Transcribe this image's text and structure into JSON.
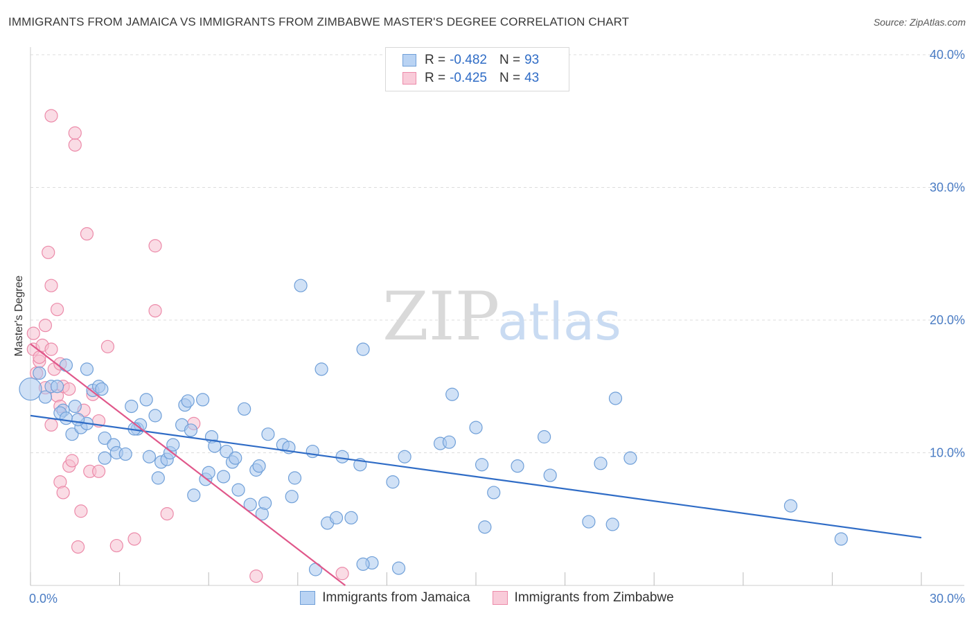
{
  "title": "IMMIGRANTS FROM JAMAICA VS IMMIGRANTS FROM ZIMBABWE MASTER'S DEGREE CORRELATION CHART",
  "source": "Source: ZipAtlas.com",
  "watermark": {
    "zip": "ZIP",
    "atlas": "atlas"
  },
  "legend": {
    "rows": [
      {
        "r_label": "R =",
        "r_value": "-0.482",
        "n_label": "N =",
        "n_value": "93"
      },
      {
        "r_label": "R =",
        "r_value": "-0.425",
        "n_label": "N =",
        "n_value": "43"
      }
    ]
  },
  "colors": {
    "jamaica_fill": "#a9c8ef",
    "jamaica_stroke": "#6f9fd8",
    "jamaica_line": "#2f6cc6",
    "zimbabwe_fill": "#f6bfd0",
    "zimbabwe_stroke": "#ec8aa9",
    "zimbabwe_line": "#e0578a",
    "grid": "#dcdcdc",
    "axis_label": "#4a7cc4"
  },
  "chart_data": {
    "type": "scatter",
    "title": "IMMIGRANTS FROM JAMAICA VS IMMIGRANTS FROM ZIMBABWE MASTER'S DEGREE CORRELATION CHART",
    "xlabel": "",
    "ylabel": "Master's Degree",
    "xlim": [
      0,
      30
    ],
    "ylim": [
      0,
      40
    ],
    "x_tick_labels": [
      {
        "value": 0,
        "label": "0.0%"
      },
      {
        "value": 30,
        "label": "30.0%"
      }
    ],
    "y_tick_labels": [
      {
        "value": 10,
        "label": "10.0%"
      },
      {
        "value": 20,
        "label": "20.0%"
      },
      {
        "value": 30,
        "label": "30.0%"
      },
      {
        "value": 40,
        "label": "40.0%"
      }
    ],
    "series": [
      {
        "name": "Immigrants from Jamaica",
        "r": -0.482,
        "n": 93,
        "trend": {
          "x": [
            0,
            30
          ],
          "y": [
            12.8,
            3.6
          ]
        },
        "points": [
          [
            0.0,
            14.8
          ],
          [
            0.3,
            16.0
          ],
          [
            0.5,
            14.2
          ],
          [
            0.7,
            15.0
          ],
          [
            0.9,
            15.0
          ],
          [
            1.1,
            13.2
          ],
          [
            1.0,
            13.0
          ],
          [
            1.2,
            12.6
          ],
          [
            1.2,
            16.6
          ],
          [
            1.4,
            11.4
          ],
          [
            1.5,
            13.5
          ],
          [
            1.7,
            11.9
          ],
          [
            1.9,
            12.2
          ],
          [
            1.9,
            16.3
          ],
          [
            2.1,
            14.7
          ],
          [
            2.3,
            15.0
          ],
          [
            2.5,
            11.1
          ],
          [
            2.5,
            9.6
          ],
          [
            2.8,
            10.6
          ],
          [
            2.9,
            10.0
          ],
          [
            3.2,
            9.9
          ],
          [
            3.4,
            13.5
          ],
          [
            3.6,
            11.8
          ],
          [
            3.7,
            12.1
          ],
          [
            3.9,
            14.0
          ],
          [
            4.0,
            9.7
          ],
          [
            4.2,
            12.8
          ],
          [
            4.3,
            8.1
          ],
          [
            4.4,
            9.3
          ],
          [
            4.6,
            9.5
          ],
          [
            4.7,
            10.0
          ],
          [
            4.8,
            10.6
          ],
          [
            5.1,
            12.1
          ],
          [
            5.2,
            13.6
          ],
          [
            5.3,
            13.9
          ],
          [
            5.4,
            11.7
          ],
          [
            5.5,
            6.8
          ],
          [
            5.8,
            14.0
          ],
          [
            5.9,
            8.0
          ],
          [
            6.0,
            8.5
          ],
          [
            6.1,
            11.2
          ],
          [
            6.2,
            10.5
          ],
          [
            6.5,
            8.2
          ],
          [
            6.6,
            10.1
          ],
          [
            6.8,
            9.3
          ],
          [
            6.9,
            9.6
          ],
          [
            7.0,
            7.2
          ],
          [
            7.2,
            13.3
          ],
          [
            7.4,
            6.1
          ],
          [
            7.6,
            8.7
          ],
          [
            7.7,
            9.0
          ],
          [
            7.8,
            5.4
          ],
          [
            7.9,
            6.2
          ],
          [
            8.0,
            11.4
          ],
          [
            8.5,
            10.6
          ],
          [
            8.7,
            10.4
          ],
          [
            8.8,
            6.7
          ],
          [
            8.9,
            8.1
          ],
          [
            9.1,
            22.6
          ],
          [
            9.5,
            10.1
          ],
          [
            9.8,
            16.3
          ],
          [
            10.0,
            4.7
          ],
          [
            10.3,
            5.1
          ],
          [
            10.5,
            9.7
          ],
          [
            10.8,
            5.1
          ],
          [
            11.1,
            9.1
          ],
          [
            11.2,
            17.8
          ],
          [
            11.5,
            1.7
          ],
          [
            12.2,
            7.8
          ],
          [
            12.4,
            1.3
          ],
          [
            12.6,
            9.7
          ],
          [
            13.8,
            10.7
          ],
          [
            14.1,
            10.8
          ],
          [
            14.2,
            14.4
          ],
          [
            15.0,
            11.9
          ],
          [
            15.2,
            9.1
          ],
          [
            15.3,
            4.4
          ],
          [
            15.6,
            7.0
          ],
          [
            16.4,
            9.0
          ],
          [
            17.3,
            11.2
          ],
          [
            17.5,
            8.3
          ],
          [
            18.8,
            4.8
          ],
          [
            19.2,
            9.2
          ],
          [
            19.6,
            4.6
          ],
          [
            19.7,
            14.1
          ],
          [
            20.2,
            9.6
          ],
          [
            25.6,
            6.0
          ],
          [
            27.3,
            3.5
          ],
          [
            9.6,
            1.2
          ],
          [
            11.2,
            1.6
          ],
          [
            3.5,
            11.8
          ],
          [
            1.6,
            12.5
          ],
          [
            2.4,
            14.8
          ]
        ]
      },
      {
        "name": "Immigrants from Zimbabwe",
        "r": -0.425,
        "n": 43,
        "trend": {
          "x": [
            0,
            10.6
          ],
          "y": [
            18.2,
            0.0
          ]
        },
        "points": [
          [
            0.1,
            19.0
          ],
          [
            0.1,
            17.8
          ],
          [
            0.2,
            16.0
          ],
          [
            0.3,
            16.9
          ],
          [
            0.4,
            18.1
          ],
          [
            0.5,
            19.6
          ],
          [
            0.6,
            25.1
          ],
          [
            0.7,
            22.6
          ],
          [
            0.7,
            17.8
          ],
          [
            0.8,
            16.3
          ],
          [
            0.9,
            14.3
          ],
          [
            1.0,
            16.7
          ],
          [
            0.7,
            12.1
          ],
          [
            1.0,
            7.8
          ],
          [
            0.9,
            20.8
          ],
          [
            1.1,
            15.0
          ],
          [
            1.1,
            7.0
          ],
          [
            1.3,
            14.8
          ],
          [
            1.3,
            9.0
          ],
          [
            1.4,
            9.4
          ],
          [
            1.5,
            33.2
          ],
          [
            1.5,
            34.1
          ],
          [
            0.7,
            35.4
          ],
          [
            1.6,
            2.9
          ],
          [
            1.7,
            5.6
          ],
          [
            1.9,
            26.5
          ],
          [
            2.0,
            8.6
          ],
          [
            2.1,
            14.4
          ],
          [
            2.3,
            12.4
          ],
          [
            2.3,
            8.6
          ],
          [
            2.6,
            18.0
          ],
          [
            2.9,
            3.0
          ],
          [
            3.5,
            3.5
          ],
          [
            4.2,
            25.6
          ],
          [
            4.2,
            20.7
          ],
          [
            4.6,
            5.4
          ],
          [
            5.5,
            12.2
          ],
          [
            7.6,
            0.7
          ],
          [
            10.5,
            0.9
          ],
          [
            0.3,
            17.2
          ],
          [
            0.5,
            14.9
          ],
          [
            1.0,
            13.5
          ],
          [
            1.8,
            13.2
          ]
        ]
      }
    ]
  }
}
